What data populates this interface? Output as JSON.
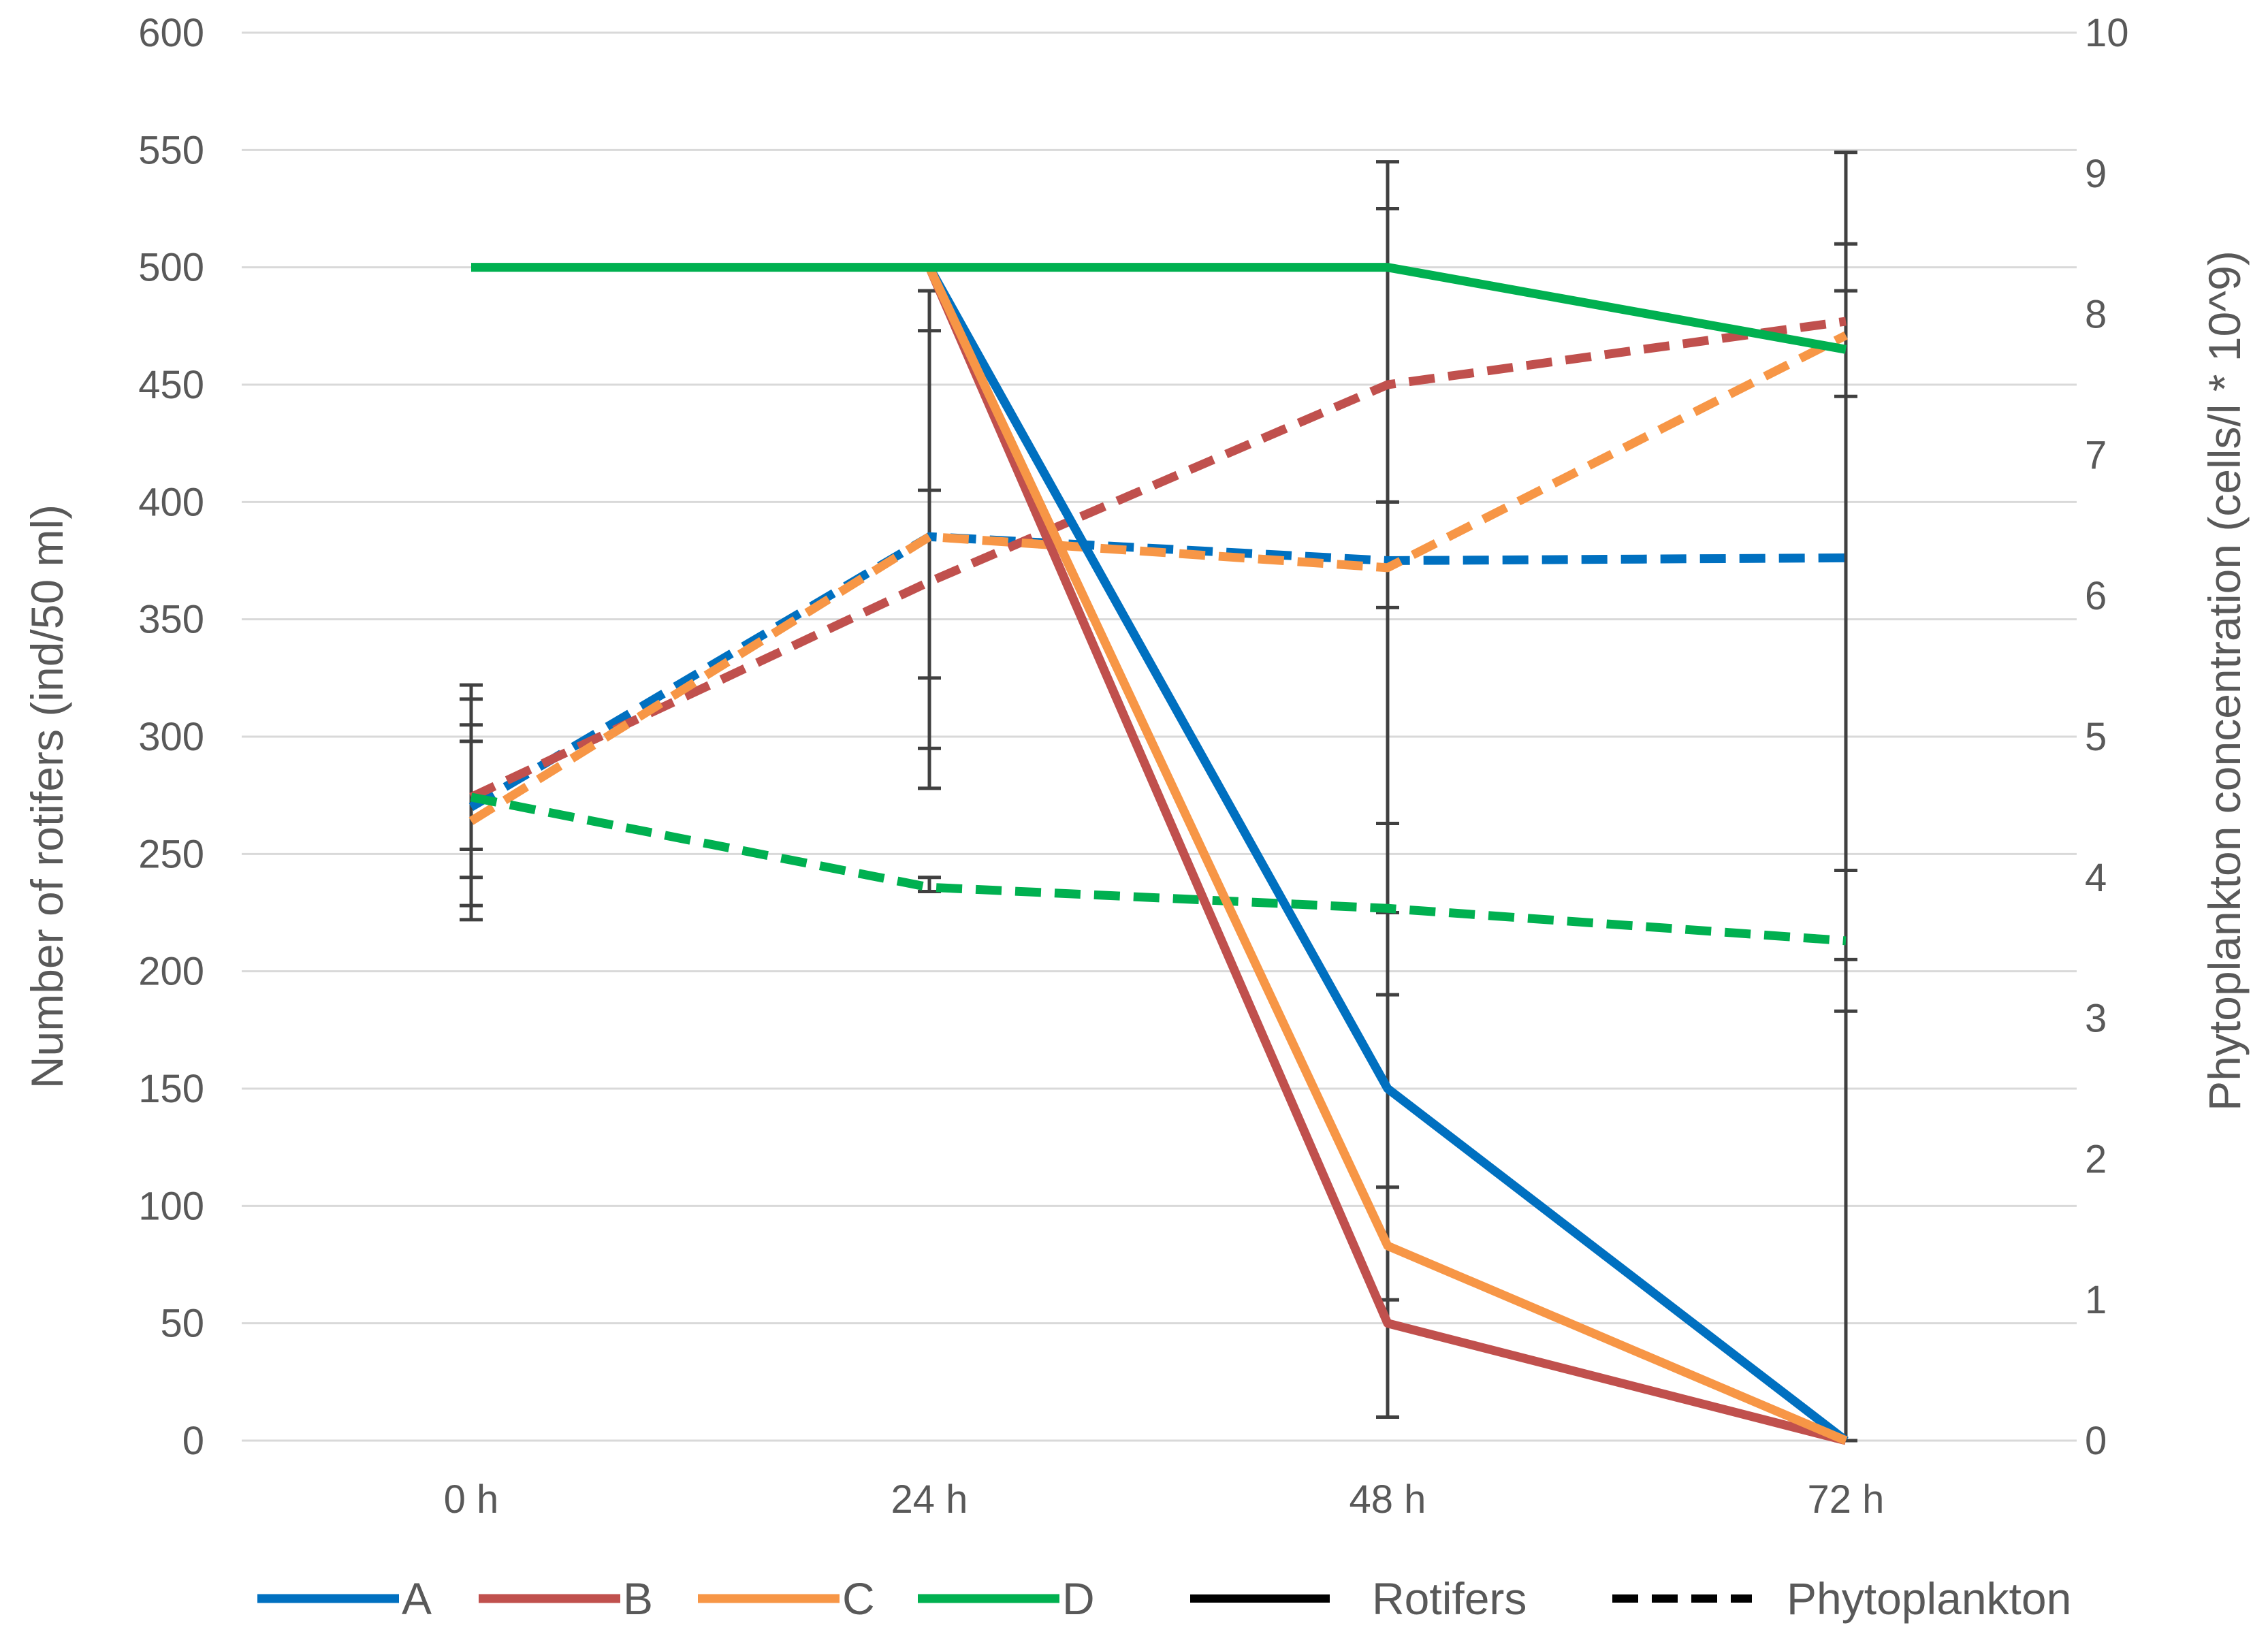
{
  "chart_data": {
    "type": "line",
    "x_categories": [
      "0 h",
      "24 h",
      "48 h",
      "72 h"
    ],
    "y_left": {
      "label": "Number of rotifers (ind/50 ml)",
      "range": [
        0,
        600
      ],
      "ticks": [
        0,
        50,
        100,
        150,
        200,
        250,
        300,
        350,
        400,
        450,
        500,
        550,
        600
      ]
    },
    "y_right": {
      "label": "Phytoplankton concentration (cells/l * 10^9)",
      "range": [
        0,
        10
      ],
      "ticks": [
        0,
        1,
        2,
        3,
        4,
        5,
        6,
        7,
        8,
        9,
        10
      ]
    },
    "grid": "horizontal",
    "legend_position": "bottom",
    "groups": [
      {
        "name": "A",
        "color": "#0070C0"
      },
      {
        "name": "B",
        "color": "#C0504D"
      },
      {
        "name": "C",
        "color": "#F79646"
      },
      {
        "name": "D",
        "color": "#00B050"
      }
    ],
    "series": [
      {
        "group": "A",
        "kind": "Rotifers",
        "axis": "left",
        "values": [
          null,
          500,
          150,
          0
        ]
      },
      {
        "group": "B",
        "kind": "Rotifers",
        "axis": "left",
        "values": [
          null,
          500,
          50,
          0
        ]
      },
      {
        "group": "C",
        "kind": "Rotifers",
        "axis": "left",
        "values": [
          null,
          500,
          83,
          0
        ]
      },
      {
        "group": "D",
        "kind": "Rotifers",
        "axis": "left",
        "values": [
          500,
          500,
          500,
          465
        ]
      },
      {
        "group": "A",
        "kind": "Phytoplankton",
        "axis": "right",
        "values": [
          4.5,
          6.42,
          6.25,
          6.27
        ]
      },
      {
        "group": "B",
        "kind": "Phytoplankton",
        "axis": "right",
        "values": [
          4.57,
          6.1,
          7.5,
          7.95
        ]
      },
      {
        "group": "C",
        "kind": "Phytoplankton",
        "axis": "right",
        "values": [
          4.4,
          6.42,
          6.2,
          7.85
        ]
      },
      {
        "group": "D",
        "kind": "Phytoplankton",
        "axis": "right",
        "values": [
          4.57,
          3.93,
          3.78,
          3.55
        ]
      }
    ],
    "error_bars": [
      {
        "x": 0,
        "axis": "left",
        "low": 222,
        "high": 322
      },
      {
        "x": 0,
        "axis": "left",
        "low": 228,
        "high": 316
      },
      {
        "x": 0,
        "axis": "left",
        "low": 240,
        "high": 305
      },
      {
        "x": 0,
        "axis": "left",
        "low": 252,
        "high": 298
      },
      {
        "x": 1,
        "axis": "left",
        "low": 278,
        "high": 490
      },
      {
        "x": 1,
        "axis": "left",
        "low": 295,
        "high": 473
      },
      {
        "x": 1,
        "axis": "left",
        "low": 325,
        "high": 405
      },
      {
        "x": 1,
        "axis": "left",
        "low": 234,
        "high": 240
      },
      {
        "x": 2,
        "axis": "left",
        "low": 10,
        "high": 545
      },
      {
        "x": 2,
        "axis": "left",
        "low": 60,
        "high": 525
      },
      {
        "x": 2,
        "axis": "left",
        "low": 108,
        "high": 400
      },
      {
        "x": 2,
        "axis": "left",
        "low": 190,
        "high": 355
      },
      {
        "x": 2,
        "axis": "left",
        "low": 225,
        "high": 263
      },
      {
        "x": 3,
        "axis": "left",
        "low": 183,
        "high": 549
      },
      {
        "x": 3,
        "axis": "left",
        "low": 205,
        "high": 510
      },
      {
        "x": 3,
        "axis": "left",
        "low": 243,
        "high": 490
      },
      {
        "x": 3,
        "axis": "left",
        "low": 0,
        "high": 445
      }
    ],
    "legend": {
      "groups": [
        "A",
        "B",
        "C",
        "D"
      ],
      "styles": [
        {
          "label": "Rotifers",
          "dash": "solid"
        },
        {
          "label": "Phytoplankton",
          "dash": "dashed"
        }
      ]
    }
  }
}
